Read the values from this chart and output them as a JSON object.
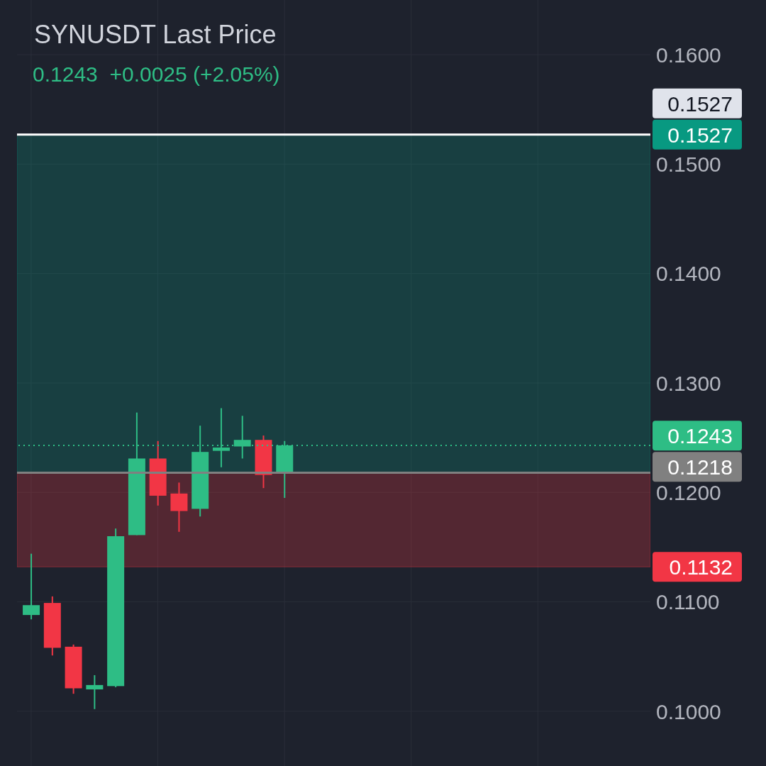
{
  "chart_data": {
    "type": "candlestick",
    "title": "SYNUSDT Last Price",
    "subtitle": "0.1243  +0.0025 (+2.05%)",
    "categories": [
      null,
      null,
      null,
      null,
      null,
      null,
      null,
      null,
      null,
      null,
      null,
      null,
      null,
      null,
      null,
      null,
      null,
      null,
      null,
      null,
      null,
      null,
      null,
      null,
      null,
      null,
      null,
      null,
      null,
      null
    ],
    "ohlc": [
      [
        0.1088,
        0.1144,
        0.1084,
        0.1097
      ],
      [
        0.1099,
        0.1105,
        0.1051,
        0.1058
      ],
      [
        0.1059,
        0.1061,
        0.1016,
        0.1021
      ],
      [
        0.102,
        0.1033,
        0.1002,
        0.1024
      ],
      [
        0.1023,
        0.1167,
        0.1022,
        0.116
      ],
      [
        0.1161,
        0.1273,
        0.1161,
        0.1231
      ],
      [
        0.1231,
        0.1247,
        0.1188,
        0.1197
      ],
      [
        0.1199,
        0.1209,
        0.1164,
        0.1183
      ],
      [
        0.1185,
        0.1261,
        0.1178,
        0.1237
      ],
      [
        0.1238,
        0.1277,
        0.1223,
        0.1241
      ],
      [
        0.1242,
        0.127,
        0.1231,
        0.1248
      ],
      [
        0.1248,
        0.1252,
        0.1204,
        0.1216
      ],
      [
        0.1218,
        0.1247,
        0.1195,
        0.1243
      ],
      null,
      null,
      null,
      null,
      null,
      null,
      null,
      null,
      null,
      null,
      null,
      null,
      null,
      null,
      null,
      null,
      null
    ],
    "colors": [
      "#2ebd85",
      "#f23645",
      "#f23645",
      "#2ebd85",
      "#2ebd85",
      "#2ebd85",
      "#f23645",
      "#f23645",
      "#2ebd85",
      "#2ebd85",
      "#2ebd85",
      "#f23645",
      "#2ebd85",
      null,
      null,
      null,
      null,
      null,
      null,
      null,
      null,
      null,
      null,
      null,
      null,
      null,
      null,
      null,
      null,
      null
    ],
    "ylim": [
      0.095,
      0.165
    ],
    "yticks": [
      {
        "value": 0.1,
        "label": "0.1000"
      },
      {
        "value": 0.11,
        "label": "0.1100"
      },
      {
        "value": 0.12,
        "label": "0.1200"
      },
      {
        "value": 0.13,
        "label": "0.1300"
      },
      {
        "value": 0.14,
        "label": "0.1400"
      },
      {
        "value": 0.15,
        "label": "0.1500"
      },
      {
        "value": 0.16,
        "label": "0.1600"
      }
    ],
    "tick_labels": "y",
    "grid": true,
    "ref_lines": [
      {
        "axis": "y",
        "value": 0.1527,
        "label": "0.1527",
        "color": "#ffffff",
        "line_style": "solid"
      },
      {
        "axis": "y",
        "value": 0.1243,
        "label": "0.1243",
        "color": "#2ebd85",
        "line_style": "dotted"
      },
      {
        "axis": "y",
        "value": 0.1218,
        "label": "0.1218",
        "color": "#808080",
        "line_style": "solid"
      }
    ],
    "bands": [
      {
        "axis": "y",
        "from": 0.1218,
        "to": 0.1527,
        "label": "0.1527",
        "color": "#089981"
      },
      {
        "axis": "y",
        "from": 0.1132,
        "to": 0.1218,
        "label": "0.1132",
        "color": "#f23645"
      }
    ]
  }
}
